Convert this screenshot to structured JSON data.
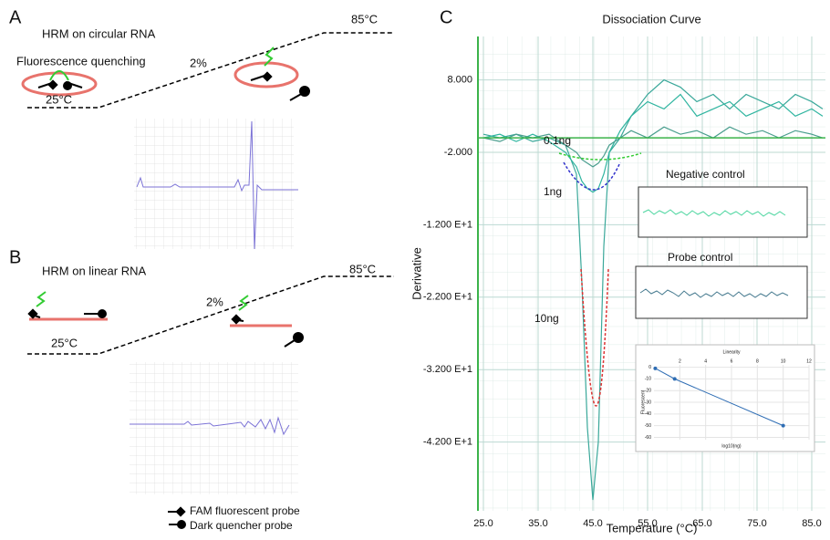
{
  "panel_a": {
    "letter": "A",
    "title": "HRM on circular RNA",
    "quench": "Fluorescence quenching",
    "low_temp": "25°C",
    "ramp": "2%",
    "high_temp": "85°C"
  },
  "panel_b": {
    "letter": "B",
    "title": "HRM on linear RNA",
    "high_temp": "85°C",
    "ramp": "2%",
    "low_temp": "25°C"
  },
  "legend": {
    "fam": "FAM fluorescent probe",
    "dark": "Dark quencher probe"
  },
  "panel_c": {
    "letter": "C",
    "label_01": "0.1ng",
    "label_1": "1ng",
    "label_10": "10ng",
    "neg": "Negative control",
    "probe": "Probe control"
  },
  "chart_data": [
    {
      "type": "line",
      "title": "Dissociation Curve",
      "x_label": "Temperature (°C)",
      "y_label": "Derivative",
      "x": [
        25,
        28,
        31,
        34,
        37,
        40,
        42,
        43,
        44,
        45,
        46,
        47,
        48,
        50,
        52,
        55,
        58,
        61,
        64,
        67,
        70,
        73,
        76,
        79,
        82,
        85,
        87
      ],
      "series": [
        {
          "name": "10ng",
          "color": "#3aa89a",
          "values": [
            0.5,
            0,
            0.5,
            -0.5,
            0,
            -1,
            -5,
            -20,
            -40,
            -50,
            -42,
            -15,
            -2,
            0,
            3,
            6,
            8,
            7,
            5,
            6,
            4,
            6,
            5,
            4,
            6,
            5,
            4
          ]
        },
        {
          "name": "1ng",
          "color": "#2fb5a0",
          "values": [
            0,
            0.5,
            -0.5,
            0.5,
            -0.5,
            -2,
            -4,
            -6,
            -7,
            -7.5,
            -7,
            -5,
            -2,
            1,
            3,
            5,
            4,
            6,
            3,
            4,
            5,
            3,
            4,
            5,
            3,
            4,
            3
          ]
        },
        {
          "name": "0.1ng",
          "color": "#4a9e8e",
          "values": [
            0,
            -0.5,
            0.5,
            0,
            0.5,
            -1,
            -2,
            -3,
            -3.5,
            -4,
            -3.5,
            -2.5,
            -1,
            0,
            1,
            0,
            1.5,
            0.5,
            1,
            0,
            1.5,
            0.5,
            1,
            0,
            1,
            0.5,
            0
          ]
        }
      ],
      "xlim": [
        24,
        87.5
      ],
      "ylim": [
        -51.5,
        14
      ],
      "xticks": [
        {
          "value": 25,
          "label": "25.0"
        },
        {
          "value": 35,
          "label": "35.0"
        },
        {
          "value": 45,
          "label": "45.0"
        },
        {
          "value": 55,
          "label": "55.0"
        },
        {
          "value": 65,
          "label": "65.0"
        },
        {
          "value": 75,
          "label": "75.0"
        },
        {
          "value": 85,
          "label": "85.0"
        }
      ],
      "yticks": [
        {
          "value": 8,
          "label": "8.000"
        },
        {
          "value": -2,
          "label": "-2.000"
        },
        {
          "value": -12,
          "label": "-1.200 E+1"
        },
        {
          "value": -22,
          "label": "-2.200 E+1"
        },
        {
          "value": -32,
          "label": "-3.200 E+1"
        },
        {
          "value": -42,
          "label": "-4.200 E+1"
        }
      ],
      "grid": true
    },
    {
      "type": "line",
      "title": "Linearity",
      "x_label": "log10(ng)",
      "y_label": "Fluorescent",
      "x": [
        0.1,
        1.6,
        10
      ],
      "values": [
        -1,
        -10,
        -50
      ],
      "color": "#2e6db4",
      "xlim": [
        0,
        12
      ],
      "ylim": [
        -62,
        2
      ],
      "xticks": [
        2,
        4,
        6,
        8,
        10,
        12
      ],
      "yticks": [
        0,
        -10,
        -20,
        -30,
        -40,
        -50,
        -60
      ],
      "grid": true
    }
  ]
}
